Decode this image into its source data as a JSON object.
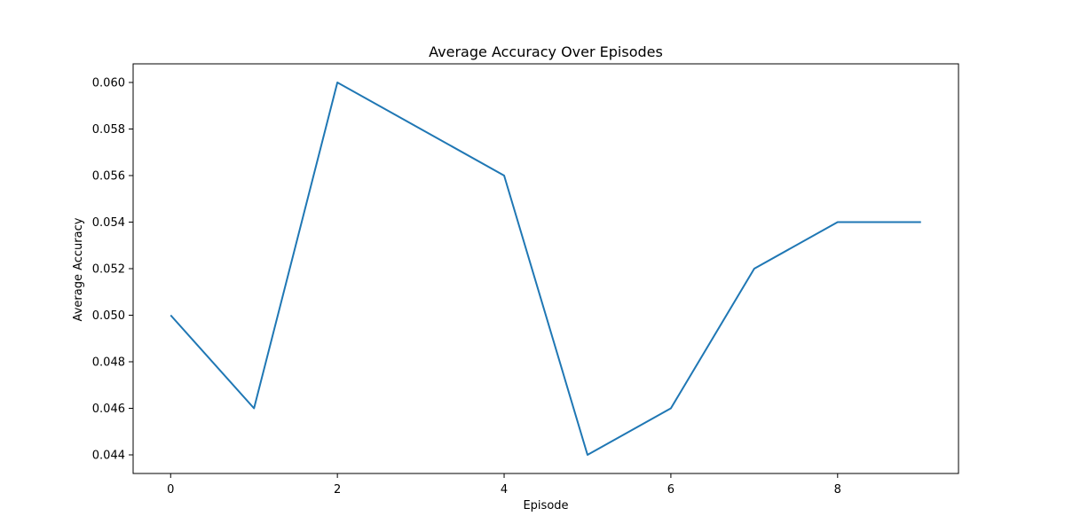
{
  "chart_data": {
    "type": "line",
    "title": "Average Accuracy Over Episodes",
    "xlabel": "Episode",
    "ylabel": "Average Accuracy",
    "x": [
      0,
      1,
      2,
      3,
      4,
      5,
      6,
      7,
      8,
      9
    ],
    "series": [
      {
        "values": [
          0.05,
          0.046,
          0.06,
          0.058,
          0.056,
          0.044,
          0.046,
          0.052,
          0.054,
          0.054
        ],
        "color": "#1f77b4"
      }
    ],
    "xlim": [
      -0.45,
      9.45
    ],
    "ylim": [
      0.0432,
      0.0608
    ],
    "xticks": [
      0,
      2,
      4,
      6,
      8
    ],
    "xtick_labels": [
      "0",
      "2",
      "4",
      "6",
      "8"
    ],
    "yticks": [
      0.044,
      0.046,
      0.048,
      0.05,
      0.052,
      0.054,
      0.056,
      0.058,
      0.06
    ],
    "ytick_labels": [
      "0.044",
      "0.046",
      "0.048",
      "0.050",
      "0.052",
      "0.054",
      "0.056",
      "0.058",
      "0.060"
    ],
    "grid": false,
    "legend": "none"
  }
}
